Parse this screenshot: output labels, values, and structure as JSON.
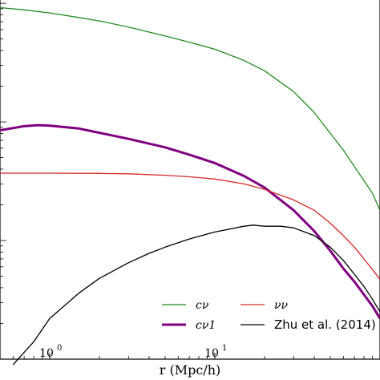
{
  "chart_data": {
    "type": "line",
    "xscale": "log",
    "yscale": "log",
    "xlabel": "r (Mpc/h)",
    "ylabel": "",
    "xlim": [
      0.5,
      100
    ],
    "ylim": [
      0.001,
      1.1
    ],
    "x_ticks": [
      {
        "value": 1,
        "base": "10",
        "exp": "0"
      },
      {
        "value": 10,
        "base": "10",
        "exp": "1"
      }
    ],
    "grid": false,
    "legend": {
      "location": "lower-right",
      "columns": 2,
      "frame": false
    },
    "series": [
      {
        "name": "cν",
        "color": "#228b22",
        "style": "thin",
        "x": [
          0.5,
          0.7,
          1,
          1.5,
          2,
          3,
          5,
          7,
          10,
          15,
          20,
          30,
          40,
          50,
          60,
          70,
          80,
          90,
          100
        ],
        "y": [
          0.92,
          0.88,
          0.83,
          0.76,
          0.71,
          0.63,
          0.53,
          0.47,
          0.41,
          0.33,
          0.27,
          0.18,
          0.12,
          0.08,
          0.058,
          0.042,
          0.032,
          0.025,
          0.018
        ]
      },
      {
        "name": "cν1",
        "color": "#800080",
        "style": "thick",
        "x": [
          0.5,
          0.7,
          0.85,
          1,
          1.5,
          2,
          3,
          5,
          7,
          10,
          15,
          20,
          30,
          40,
          50,
          60,
          70,
          80,
          90,
          100
        ],
        "y": [
          0.085,
          0.092,
          0.094,
          0.093,
          0.088,
          0.081,
          0.072,
          0.061,
          0.053,
          0.045,
          0.035,
          0.028,
          0.018,
          0.012,
          0.0082,
          0.0058,
          0.0045,
          0.0035,
          0.0028,
          0.0022
        ]
      },
      {
        "name": "νν",
        "color": "#d62728",
        "style": "thin",
        "x": [
          0.5,
          1,
          2,
          3,
          5,
          7,
          10,
          15,
          20,
          30,
          40,
          50,
          60,
          70,
          80,
          90,
          100
        ],
        "y": [
          0.037,
          0.037,
          0.0368,
          0.0365,
          0.0355,
          0.0345,
          0.033,
          0.03,
          0.027,
          0.022,
          0.018,
          0.014,
          0.011,
          0.0088,
          0.007,
          0.0057,
          0.0047
        ]
      },
      {
        "name": "Zhu et al. (2014)",
        "color": "#000000",
        "style": "thin",
        "x": [
          0.6,
          0.8,
          1,
          1.5,
          2,
          3,
          4,
          5,
          7,
          10,
          15,
          17,
          20,
          25,
          30,
          40,
          50,
          60,
          70,
          80,
          90,
          100
        ],
        "y": [
          0.0009,
          0.0014,
          0.0022,
          0.0036,
          0.0048,
          0.0065,
          0.0078,
          0.0088,
          0.0103,
          0.0118,
          0.0132,
          0.0135,
          0.0132,
          0.0132,
          0.0128,
          0.011,
          0.0088,
          0.0068,
          0.0052,
          0.0041,
          0.0032,
          0.0025
        ]
      }
    ]
  }
}
